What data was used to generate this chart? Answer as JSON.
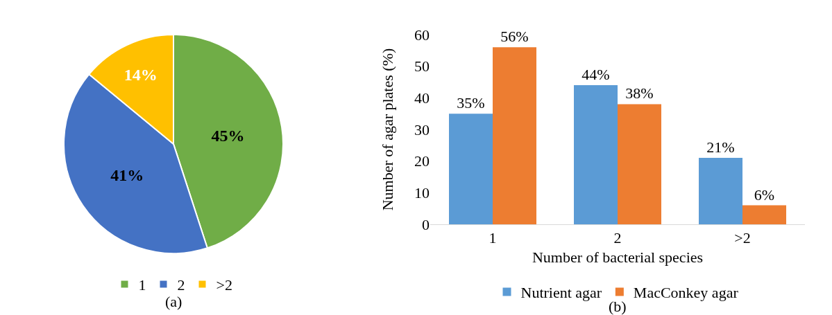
{
  "chart_data": [
    {
      "type": "pie",
      "categories": [
        "1",
        "2",
        ">2"
      ],
      "values": [
        45,
        41,
        14
      ],
      "colors": [
        "#70ad47",
        "#4472c4",
        "#ffc000"
      ],
      "value_labels": [
        "45%",
        "41%",
        "14%"
      ],
      "legend": "bottom",
      "annotations": [
        "(a)"
      ]
    },
    {
      "type": "bar",
      "categories": [
        "1",
        "2",
        ">2"
      ],
      "series": [
        {
          "name": "Nutrient agar",
          "color": "#5b9bd5",
          "values": [
            35,
            44,
            21
          ],
          "value_labels": [
            "35%",
            "44%",
            "21%"
          ]
        },
        {
          "name": "MacConkey agar",
          "color": "#ed7d31",
          "values": [
            56,
            38,
            6
          ],
          "value_labels": [
            "56%",
            "38%",
            "6%"
          ]
        }
      ],
      "xlabel": "Number of bacterial species",
      "ylabel": "Number of agar plates (%)",
      "ylim": [
        0,
        60
      ],
      "yticks": [
        0,
        10,
        20,
        30,
        40,
        50,
        60
      ],
      "grid": false,
      "legend": "bottom",
      "annotations": [
        "(b)"
      ]
    }
  ]
}
